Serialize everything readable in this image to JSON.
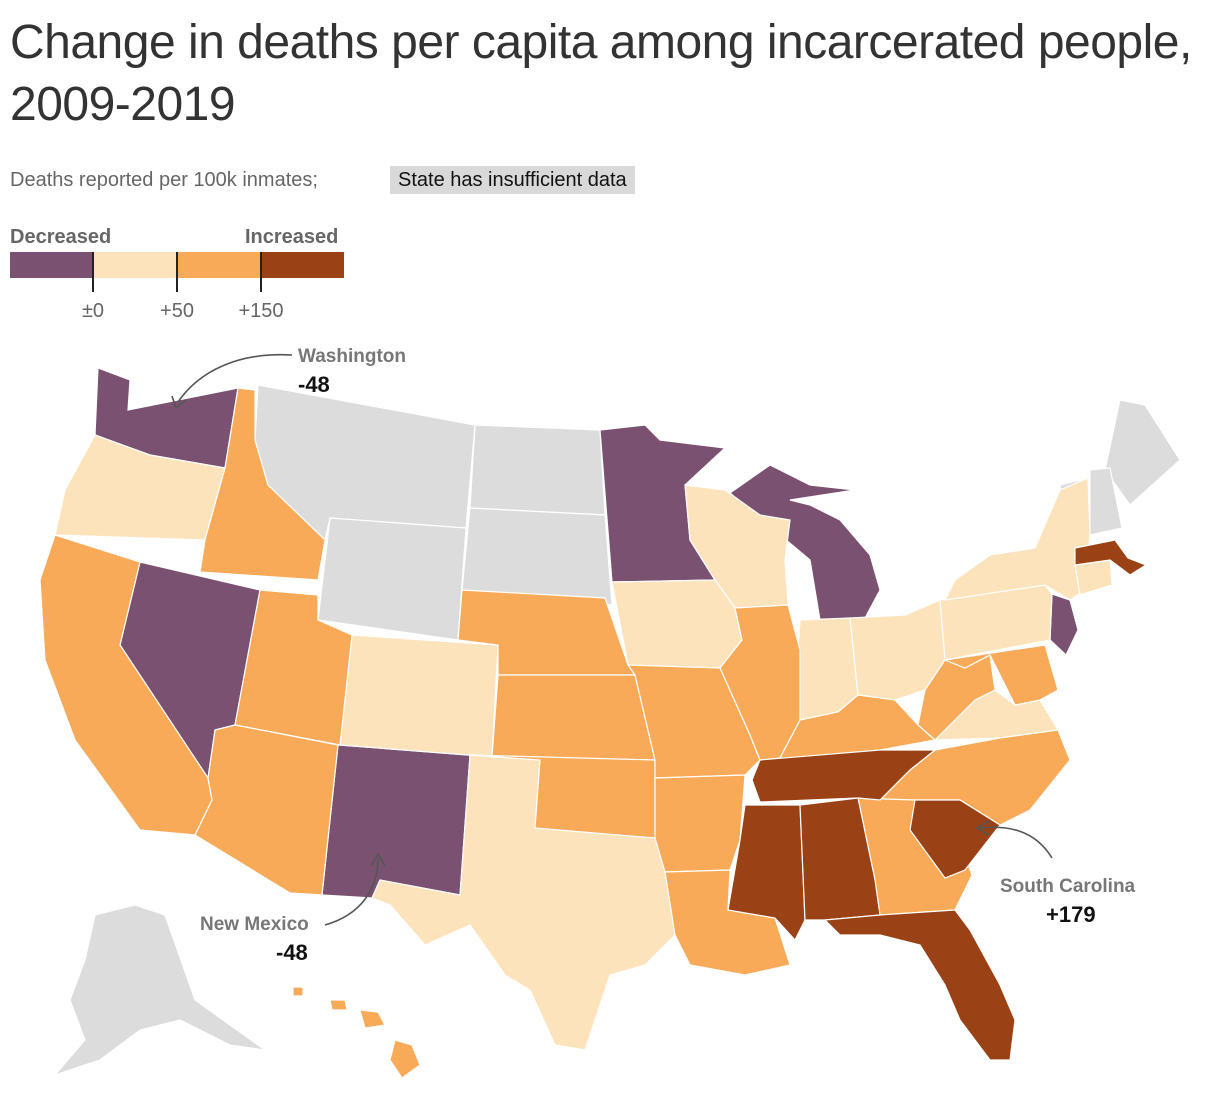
{
  "title": "Change in deaths per capita among incarcerated people, 2009-2019",
  "subtitle": "Deaths reported per 100k inmates;",
  "insufficient_label": "State has insufficient data",
  "legend": {
    "low_label": "Decreased",
    "high_label": "Increased",
    "colors": [
      "#7a5170",
      "#fde3bb",
      "#f8aa59",
      "#9a4115"
    ],
    "ticks": [
      "±0",
      "+50",
      "+150"
    ]
  },
  "colors": {
    "decreased": "#7a5170",
    "small_increase": "#fde3bb",
    "medium_increase": "#f8aa59",
    "large_increase": "#9a4115",
    "insufficient": "#dcdcdc"
  },
  "annotations": [
    {
      "state": "Washington",
      "value": "-48"
    },
    {
      "state": "New Mexico",
      "value": "-48"
    },
    {
      "state": "South Carolina",
      "value": "+179"
    }
  ]
}
